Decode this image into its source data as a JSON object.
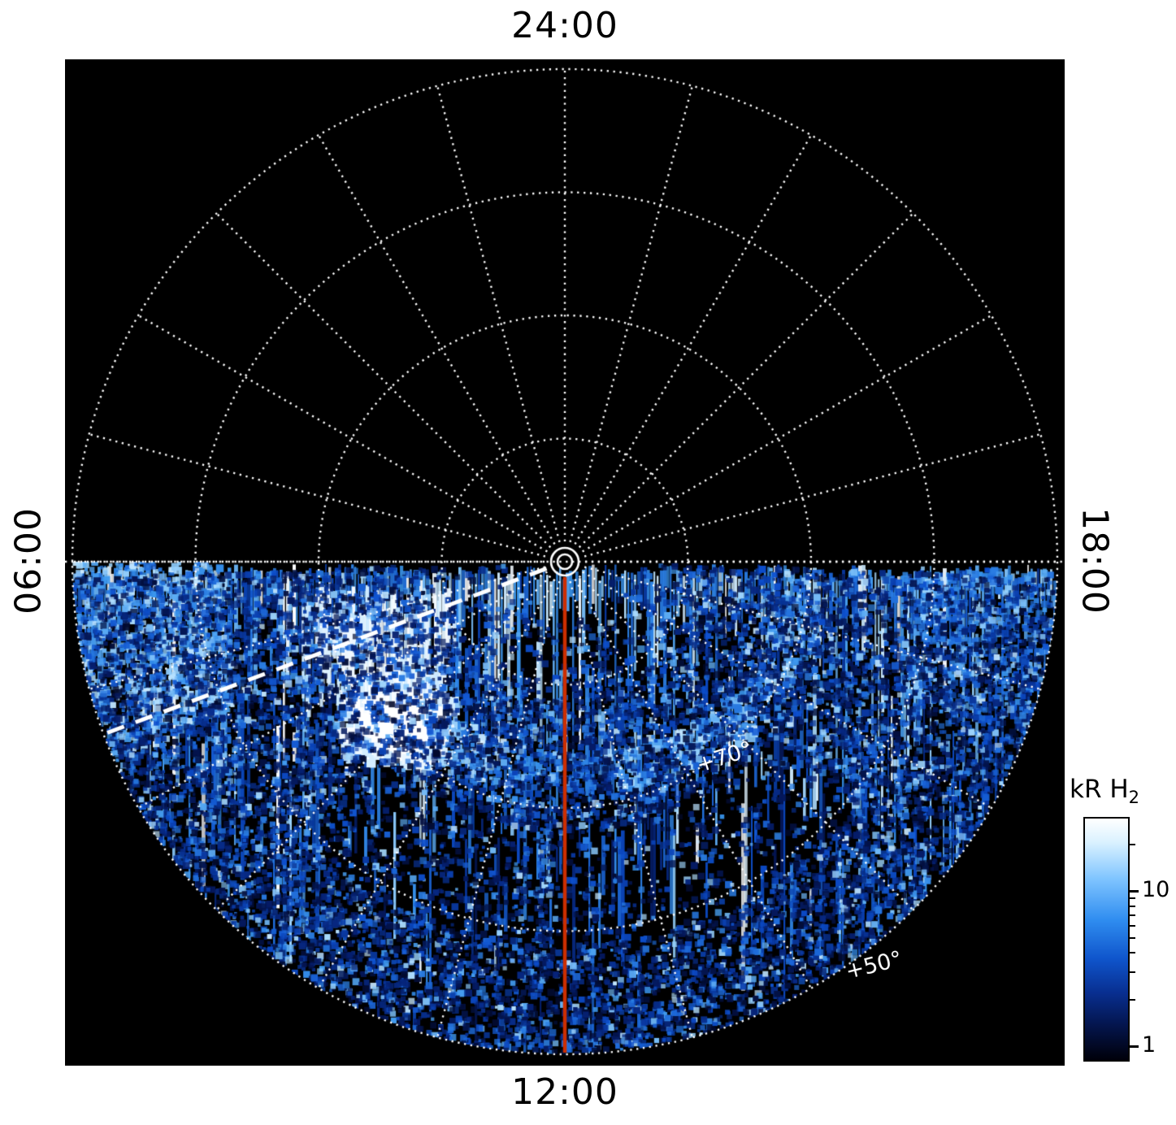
{
  "figure": {
    "background": "#ffffff",
    "plot_background": "#000000",
    "grid_color": "#ffffff"
  },
  "chart_data": {
    "type": "heatmap",
    "projection": "polar",
    "title": "",
    "description": "Polar projection map of auroral H2 emission brightness (kR) versus local time (angle) and latitude (radius). Emission fills the dayside (lower) half of the disc between 06:00 and 18:00 local time through 12:00; a bright auroral oval lies near +70 degrees latitude with a saturated white patch on the dawn side (~08:30-10:00 LT). The nightside (upper) half contains no data (black). Dotted white polar grid overlays the map.",
    "angular_axis": {
      "unit": "local time",
      "top": "24:00",
      "right": "18:00",
      "bottom": "12:00",
      "left": "06:00",
      "spoke_interval_hours": 1,
      "spoke_interval_deg": 15
    },
    "radial_axis": {
      "unit": "latitude",
      "pole_latitude_deg": 90,
      "ring_latitudes_deg": [
        80,
        70,
        60,
        50
      ],
      "ring_fractions": [
        0.25,
        0.5,
        0.75,
        1.0
      ],
      "ring_labels": [
        "+70°",
        "+50°"
      ],
      "ring_label_latitudes_deg": [
        70,
        50
      ]
    },
    "colorbar": {
      "label_main": "kR H",
      "label_sub": "2",
      "scale": "log",
      "min": 0.8,
      "max": 30,
      "ticks": [
        10,
        1
      ],
      "minor_ticks": [
        20,
        9,
        8,
        7,
        6,
        5,
        4,
        3,
        2
      ],
      "gradient": [
        [
          0.0,
          "#ffffff"
        ],
        [
          0.1,
          "#d9f1ff"
        ],
        [
          0.25,
          "#7fc4ff"
        ],
        [
          0.42,
          "#2f8df0"
        ],
        [
          0.58,
          "#0f55cc"
        ],
        [
          0.72,
          "#082f91"
        ],
        [
          0.85,
          "#041650"
        ],
        [
          1.0,
          "#00000a"
        ]
      ]
    },
    "markers": {
      "meridian_line": {
        "local_time": "12:00",
        "color": "#cc2e00",
        "style": "solid"
      },
      "dashed_line": {
        "local_time": "~07:20",
        "color": "#ffffff",
        "style": "dashed",
        "screen_angle_deg": 159.5
      }
    },
    "emission": {
      "data_extent": "lower half disc, latitudes 50-90 deg, local times 06:00-18:00",
      "upper_half": "no data (black)",
      "auroral_oval_latitude_deg": 70,
      "oval_radius_fraction": 0.46,
      "bright_patch_local_time": "08:30-10:00",
      "bright_patch_value_kr": ">30 (saturated white)",
      "background_emission_kr": "1-10 speckled"
    }
  }
}
